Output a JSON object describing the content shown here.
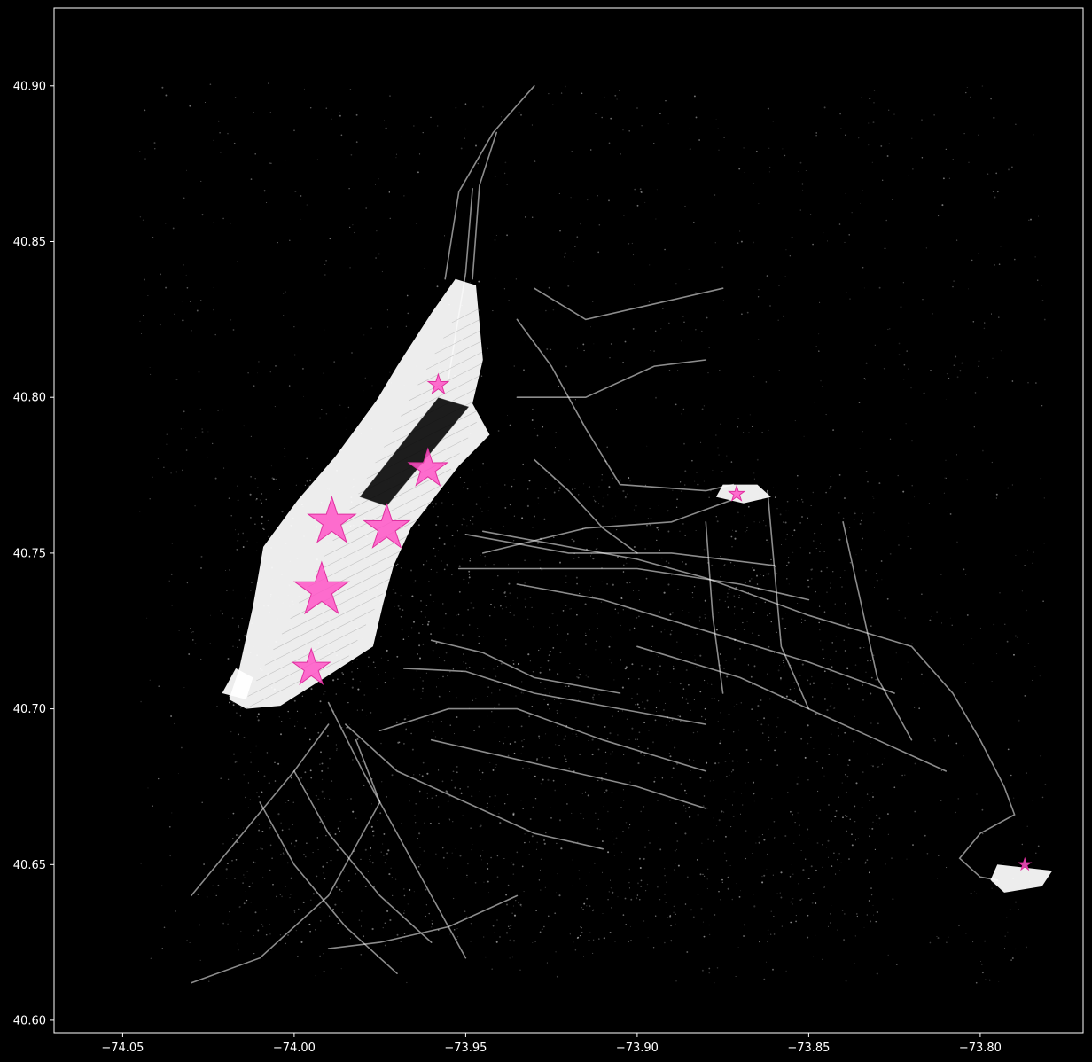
{
  "chart_data": {
    "type": "scatter",
    "title": "",
    "xlabel": "",
    "ylabel": "",
    "xlim": [
      -74.07,
      -73.77
    ],
    "ylim": [
      40.596,
      40.925
    ],
    "grid": false,
    "legend": "none",
    "background_color": "#000000",
    "axis_color": "#ffffff",
    "x_ticks": [
      {
        "value": -74.05,
        "label": "−74.05"
      },
      {
        "value": -74.0,
        "label": "−74.00"
      },
      {
        "value": -73.95,
        "label": "−73.95"
      },
      {
        "value": -73.9,
        "label": "−73.90"
      },
      {
        "value": -73.85,
        "label": "−73.85"
      },
      {
        "value": -73.8,
        "label": "−73.80"
      }
    ],
    "y_ticks": [
      {
        "value": 40.6,
        "label": "40.60"
      },
      {
        "value": 40.65,
        "label": "40.65"
      },
      {
        "value": 40.7,
        "label": "40.70"
      },
      {
        "value": 40.75,
        "label": "40.75"
      },
      {
        "value": 40.8,
        "label": "40.80"
      },
      {
        "value": 40.85,
        "label": "40.85"
      },
      {
        "value": 40.9,
        "label": "40.90"
      }
    ],
    "series": [
      {
        "kind": "pickup-density",
        "color": "#ffffff",
        "regions": [
          {
            "polygon": [
              [
                -74.019,
                40.703
              ],
              [
                -74.016,
                40.713
              ],
              [
                -74.012,
                40.733
              ],
              [
                -74.009,
                40.752
              ],
              [
                -73.999,
                40.767
              ],
              [
                -73.988,
                40.781
              ],
              [
                -73.976,
                40.799
              ],
              [
                -73.97,
                40.81
              ],
              [
                -73.96,
                40.827
              ],
              [
                -73.953,
                40.838
              ],
              [
                -73.947,
                40.836
              ],
              [
                -73.945,
                40.812
              ],
              [
                -73.948,
                40.798
              ],
              [
                -73.943,
                40.788
              ],
              [
                -73.952,
                40.778
              ],
              [
                -73.966,
                40.758
              ],
              [
                -73.971,
                40.746
              ],
              [
                -73.974,
                40.734
              ],
              [
                -73.977,
                40.72
              ],
              [
                -73.991,
                40.71
              ],
              [
                -74.004,
                40.701
              ],
              [
                -74.014,
                40.7
              ]
            ]
          },
          {
            "polygon": [
              [
                -74.021,
                40.705
              ],
              [
                -74.017,
                40.713
              ],
              [
                -74.012,
                40.71
              ],
              [
                -74.014,
                40.703
              ]
            ]
          },
          {
            "polygon": [
              [
                -73.875,
                40.772
              ],
              [
                -73.865,
                40.772
              ],
              [
                -73.861,
                40.768
              ],
              [
                -73.869,
                40.766
              ],
              [
                -73.877,
                40.768
              ]
            ]
          },
          {
            "polygon": [
              [
                -73.795,
                40.65
              ],
              [
                -73.779,
                40.648
              ],
              [
                -73.782,
                40.643
              ],
              [
                -73.793,
                40.641
              ],
              [
                -73.797,
                40.645
              ]
            ]
          }
        ],
        "park_holes": [
          {
            "polygon": [
              [
                -73.981,
                40.768
              ],
              [
                -73.958,
                40.8
              ],
              [
                -73.949,
                40.797
              ],
              [
                -73.973,
                40.765
              ]
            ]
          }
        ],
        "streets": [
          [
            [
              -73.956,
              40.838
            ],
            [
              -73.952,
              40.866
            ],
            [
              -73.942,
              40.885
            ],
            [
              -73.93,
              40.9
            ]
          ],
          [
            [
              -73.948,
              40.838
            ],
            [
              -73.946,
              40.868
            ],
            [
              -73.941,
              40.885
            ]
          ],
          [
            [
              -73.955,
              40.806
            ],
            [
              -73.95,
              40.84
            ],
            [
              -73.948,
              40.867
            ]
          ],
          [
            [
              -73.99,
              40.702
            ],
            [
              -73.98,
              40.68
            ],
            [
              -73.97,
              40.66
            ],
            [
              -73.96,
              40.64
            ],
            [
              -73.95,
              40.62
            ]
          ],
          [
            [
              -73.985,
              40.695
            ],
            [
              -73.97,
              40.68
            ],
            [
              -73.95,
              40.67
            ],
            [
              -73.93,
              40.66
            ],
            [
              -73.91,
              40.655
            ]
          ],
          [
            [
              -73.982,
              40.69
            ],
            [
              -73.975,
              40.67
            ],
            [
              -73.99,
              40.64
            ],
            [
              -74.01,
              40.62
            ],
            [
              -74.03,
              40.612
            ]
          ],
          [
            [
              -73.975,
              40.693
            ],
            [
              -73.955,
              40.7
            ],
            [
              -73.935,
              40.7
            ],
            [
              -73.91,
              40.69
            ],
            [
              -73.88,
              40.68
            ]
          ],
          [
            [
              -73.968,
              40.713
            ],
            [
              -73.95,
              40.712
            ],
            [
              -73.93,
              40.705
            ],
            [
              -73.905,
              40.7
            ],
            [
              -73.88,
              40.695
            ]
          ],
          [
            [
              -73.96,
              40.722
            ],
            [
              -73.945,
              40.718
            ],
            [
              -73.93,
              40.71
            ],
            [
              -73.905,
              40.705
            ]
          ],
          [
            [
              -74.0,
              40.68
            ],
            [
              -73.99,
              40.66
            ],
            [
              -73.975,
              40.64
            ],
            [
              -73.96,
              40.625
            ]
          ],
          [
            [
              -74.01,
              40.67
            ],
            [
              -74.0,
              40.65
            ],
            [
              -73.985,
              40.63
            ],
            [
              -73.97,
              40.615
            ]
          ],
          [
            [
              -74.03,
              40.64
            ],
            [
              -74.015,
              40.66
            ],
            [
              -74.0,
              40.68
            ],
            [
              -73.99,
              40.695
            ]
          ],
          [
            [
              -73.952,
              40.745
            ],
            [
              -73.93,
              40.745
            ],
            [
              -73.9,
              40.745
            ],
            [
              -73.87,
              40.74
            ],
            [
              -73.85,
              40.735
            ]
          ],
          [
            [
              -73.95,
              40.756
            ],
            [
              -73.92,
              40.75
            ],
            [
              -73.89,
              40.75
            ],
            [
              -73.86,
              40.746
            ]
          ],
          [
            [
              -73.945,
              40.75
            ],
            [
              -73.915,
              40.758
            ],
            [
              -73.89,
              40.76
            ],
            [
              -73.87,
              40.768
            ]
          ],
          [
            [
              -73.935,
              40.74
            ],
            [
              -73.91,
              40.735
            ],
            [
              -73.88,
              40.725
            ],
            [
              -73.85,
              40.715
            ],
            [
              -73.825,
              40.705
            ]
          ],
          [
            [
              -73.945,
              40.757
            ],
            [
              -73.9,
              40.748
            ],
            [
              -73.88,
              40.742
            ],
            [
              -73.85,
              40.73
            ],
            [
              -73.82,
              40.72
            ],
            [
              -73.808,
              40.705
            ],
            [
              -73.8,
              40.69
            ],
            [
              -73.793,
              40.675
            ],
            [
              -73.79,
              40.666
            ],
            [
              -73.8,
              40.66
            ],
            [
              -73.806,
              40.652
            ],
            [
              -73.8,
              40.646
            ],
            [
              -73.795,
              40.645
            ]
          ],
          [
            [
              -73.93,
              40.78
            ],
            [
              -73.92,
              40.77
            ],
            [
              -73.91,
              40.758
            ],
            [
              -73.9,
              40.75
            ]
          ],
          [
            [
              -73.935,
              40.825
            ],
            [
              -73.925,
              40.81
            ],
            [
              -73.915,
              40.79
            ],
            [
              -73.905,
              40.772
            ],
            [
              -73.88,
              40.77
            ],
            [
              -73.872,
              40.772
            ]
          ],
          [
            [
              -73.935,
              40.8
            ],
            [
              -73.915,
              40.8
            ],
            [
              -73.895,
              40.81
            ],
            [
              -73.88,
              40.812
            ]
          ],
          [
            [
              -73.93,
              40.835
            ],
            [
              -73.915,
              40.825
            ],
            [
              -73.895,
              40.83
            ],
            [
              -73.875,
              40.835
            ]
          ],
          [
            [
              -73.9,
              40.72
            ],
            [
              -73.87,
              40.71
            ],
            [
              -73.85,
              40.7
            ],
            [
              -73.83,
              40.69
            ],
            [
              -73.81,
              40.68
            ]
          ],
          [
            [
              -73.96,
              40.69
            ],
            [
              -73.94,
              40.685
            ],
            [
              -73.92,
              40.68
            ],
            [
              -73.9,
              40.675
            ],
            [
              -73.88,
              40.668
            ]
          ],
          [
            [
              -73.99,
              40.623
            ],
            [
              -73.975,
              40.625
            ],
            [
              -73.955,
              40.63
            ],
            [
              -73.935,
              40.64
            ]
          ],
          [
            [
              -73.862,
              40.77
            ],
            [
              -73.86,
              40.745
            ],
            [
              -73.858,
              40.72
            ],
            [
              -73.85,
              40.7
            ]
          ],
          [
            [
              -73.84,
              40.76
            ],
            [
              -73.835,
              40.735
            ],
            [
              -73.83,
              40.71
            ],
            [
              -73.82,
              40.69
            ]
          ],
          [
            [
              -73.88,
              40.76
            ],
            [
              -73.878,
              40.73
            ],
            [
              -73.875,
              40.705
            ]
          ]
        ]
      },
      {
        "kind": "top-pickup-locations",
        "name": "",
        "marker": "star",
        "color": "#ff55c7",
        "edge_color": "#e030a0",
        "points": [
          {
            "x": -73.958,
            "y": 40.804,
            "size": 12
          },
          {
            "x": -73.961,
            "y": 40.777,
            "size": 23
          },
          {
            "x": -73.989,
            "y": 40.76,
            "size": 28
          },
          {
            "x": -73.973,
            "y": 40.758,
            "size": 27
          },
          {
            "x": -73.992,
            "y": 40.738,
            "size": 32
          },
          {
            "x": -73.995,
            "y": 40.713,
            "size": 22
          },
          {
            "x": -73.871,
            "y": 40.769,
            "size": 9
          },
          {
            "x": -73.787,
            "y": 40.65,
            "size": 7
          }
        ]
      }
    ]
  }
}
